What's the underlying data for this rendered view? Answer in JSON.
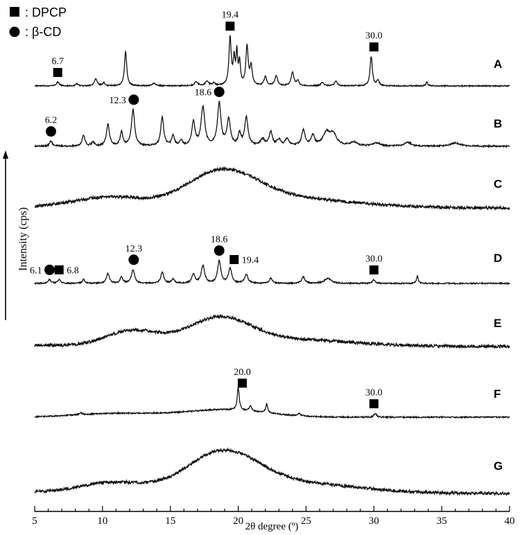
{
  "chart_data": {
    "type": "line",
    "xlabel": "2θ degree (º)",
    "ylabel": "Intensity (cps)",
    "xlim": [
      5,
      40
    ],
    "xticks": [
      5,
      10,
      15,
      20,
      25,
      30,
      35,
      40
    ],
    "legend": {
      "placement": "top-left",
      "entries": [
        {
          "symbol": "square",
          "label": ": DPCP"
        },
        {
          "symbol": "circle",
          "label": ": β-CD"
        }
      ]
    },
    "colors": {
      "line": "#111111",
      "axis": "#000000",
      "marker": "#000000"
    },
    "series": [
      {
        "name": "A",
        "kind": "peaks",
        "noise": 0.9,
        "peaks": [
          [
            6.7,
            6,
            0.12
          ],
          [
            8.1,
            3,
            0.1
          ],
          [
            9.5,
            12,
            0.12
          ],
          [
            10.1,
            5,
            0.1
          ],
          [
            11.7,
            55,
            0.1
          ],
          [
            13.8,
            4,
            0.15
          ],
          [
            16.9,
            6,
            0.15
          ],
          [
            17.7,
            7,
            0.15
          ],
          [
            18.2,
            4,
            0.12
          ],
          [
            19.4,
            76,
            0.1
          ],
          [
            19.7,
            40,
            0.08
          ],
          [
            19.9,
            50,
            0.07
          ],
          [
            20.1,
            36,
            0.08
          ],
          [
            20.65,
            62,
            0.1
          ],
          [
            20.95,
            30,
            0.1
          ],
          [
            22.0,
            14,
            0.12
          ],
          [
            22.8,
            16,
            0.12
          ],
          [
            24.0,
            22,
            0.12
          ],
          [
            24.4,
            8,
            0.1
          ],
          [
            26.2,
            6,
            0.12
          ],
          [
            27.2,
            8,
            0.12
          ],
          [
            29.8,
            47,
            0.1
          ],
          [
            30.3,
            9,
            0.1
          ],
          [
            33.9,
            6,
            0.08
          ]
        ],
        "annotations": [
          {
            "x": 6.7,
            "marker": "square",
            "label": "6.7",
            "label_pos": "above"
          },
          {
            "x": 19.4,
            "marker": "square",
            "label": "19.4",
            "label_pos": "above"
          },
          {
            "x": 30.0,
            "marker": "square",
            "label": "30.0",
            "label_pos": "above"
          }
        ]
      },
      {
        "name": "B",
        "kind": "peaks",
        "noise": 1.2,
        "peaks": [
          [
            6.2,
            8,
            0.12
          ],
          [
            8.6,
            18,
            0.12
          ],
          [
            9.3,
            6,
            0.12
          ],
          [
            10.4,
            35,
            0.13
          ],
          [
            11.4,
            22,
            0.12
          ],
          [
            12.25,
            58,
            0.14
          ],
          [
            14.4,
            46,
            0.13
          ],
          [
            15.2,
            16,
            0.12
          ],
          [
            15.8,
            8,
            0.12
          ],
          [
            16.7,
            38,
            0.14
          ],
          [
            17.4,
            62,
            0.16
          ],
          [
            18.6,
            68,
            0.15
          ],
          [
            19.3,
            42,
            0.15
          ],
          [
            20.1,
            18,
            0.12
          ],
          [
            20.6,
            45,
            0.15
          ],
          [
            21.8,
            10,
            0.2
          ],
          [
            22.4,
            22,
            0.14
          ],
          [
            23.0,
            10,
            0.15
          ],
          [
            23.6,
            12,
            0.15
          ],
          [
            24.8,
            25,
            0.15
          ],
          [
            25.5,
            16,
            0.15
          ],
          [
            26.5,
            20,
            0.3
          ],
          [
            27.0,
            18,
            0.3
          ],
          [
            28.5,
            6,
            0.3
          ],
          [
            30.2,
            5,
            0.3
          ],
          [
            32.5,
            6,
            0.3
          ],
          [
            36.0,
            5,
            0.4
          ]
        ],
        "annotations": [
          {
            "x": 6.2,
            "marker": "circle",
            "label": "6.2",
            "label_pos": "above"
          },
          {
            "x": 12.3,
            "marker": "circle",
            "label": "12.3",
            "label_pos": "left"
          },
          {
            "x": 18.6,
            "marker": "circle",
            "label": "18.6",
            "label_pos": "left"
          }
        ]
      },
      {
        "name": "C",
        "kind": "halo",
        "noise": 2.4,
        "humps": [
          [
            10.5,
            16,
            2.5
          ],
          [
            18.8,
            54,
            2.6
          ],
          [
            24,
            14,
            4.5
          ]
        ],
        "tail": 6,
        "annotations": []
      },
      {
        "name": "D",
        "kind": "peaks",
        "noise": 1.0,
        "peaks": [
          [
            6.1,
            6,
            0.12
          ],
          [
            6.8,
            6,
            0.12
          ],
          [
            8.6,
            6,
            0.12
          ],
          [
            10.4,
            16,
            0.13
          ],
          [
            11.4,
            10,
            0.12
          ],
          [
            12.25,
            22,
            0.14
          ],
          [
            14.4,
            18,
            0.13
          ],
          [
            15.2,
            7,
            0.12
          ],
          [
            16.7,
            14,
            0.14
          ],
          [
            17.4,
            28,
            0.15
          ],
          [
            18.6,
            36,
            0.14
          ],
          [
            19.4,
            24,
            0.14
          ],
          [
            20.6,
            14,
            0.15
          ],
          [
            22.4,
            8,
            0.14
          ],
          [
            24.8,
            10,
            0.15
          ],
          [
            26.6,
            8,
            0.3
          ],
          [
            30.0,
            6,
            0.12
          ],
          [
            33.2,
            12,
            0.08
          ]
        ],
        "annotations": [
          {
            "x": 6.1,
            "marker": "circle",
            "label": "6.1",
            "label_pos": "left"
          },
          {
            "x": 6.8,
            "marker": "square",
            "label": "6.8",
            "label_pos": "right"
          },
          {
            "x": 12.3,
            "marker": "circle",
            "label": "12.3",
            "label_pos": "above"
          },
          {
            "x": 18.6,
            "marker": "circle",
            "label": "18.6",
            "label_pos": "above"
          },
          {
            "x": 19.7,
            "marker": "square",
            "label": "19.4",
            "label_pos": "right"
          },
          {
            "x": 30.0,
            "marker": "square",
            "label": "30.0",
            "label_pos": "above"
          }
        ]
      },
      {
        "name": "E",
        "kind": "halo",
        "noise": 2.4,
        "humps": [
          [
            12.2,
            24,
            1.9
          ],
          [
            18.6,
            42,
            2.3
          ],
          [
            24,
            10,
            4.5
          ]
        ],
        "tail": 6,
        "annotations": []
      },
      {
        "name": "F",
        "kind": "peaks",
        "noise": 1.0,
        "halo": [
          [
            11,
            6,
            3
          ],
          [
            19,
            12,
            3
          ]
        ],
        "peaks": [
          [
            20.0,
            36,
            0.09
          ],
          [
            20.9,
            8,
            0.1
          ],
          [
            22.1,
            14,
            0.09
          ],
          [
            24.5,
            4,
            0.12
          ],
          [
            30.1,
            6,
            0.12
          ],
          [
            8.4,
            3,
            0.12
          ]
        ],
        "annotations": [
          {
            "x": 20.3,
            "marker": "square",
            "label": "20.0",
            "label_pos": "above"
          },
          {
            "x": 30.0,
            "marker": "square",
            "label": "30.0",
            "label_pos": "above"
          }
        ]
      },
      {
        "name": "G",
        "kind": "halo",
        "noise": 2.4,
        "humps": [
          [
            10.8,
            16,
            2.4
          ],
          [
            18.8,
            60,
            2.6
          ],
          [
            24,
            16,
            4.5
          ]
        ],
        "tail": 6,
        "annotations": []
      }
    ]
  }
}
